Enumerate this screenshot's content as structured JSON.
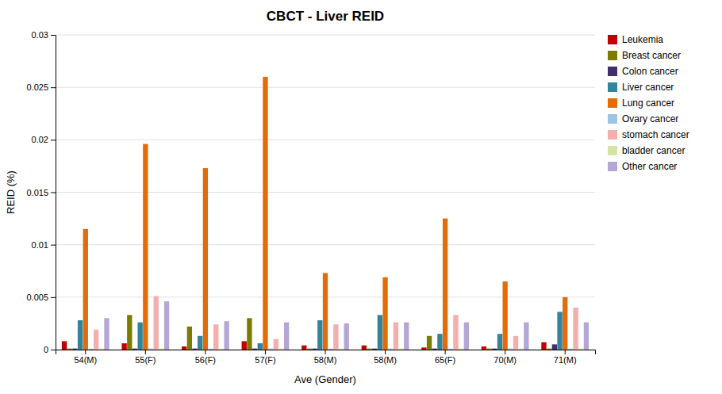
{
  "chart_data": {
    "type": "bar",
    "title": "CBCT - Liver REID",
    "xlabel": "Ave (Gender)",
    "ylabel": "REID (%)",
    "categories": [
      "54(M)",
      "55(F)",
      "56(F)",
      "57(F)",
      "58(M)",
      "58(M)",
      "65(F)",
      "70(M)",
      "71(M)"
    ],
    "series": [
      {
        "name": "Leukemia",
        "color": "#C00000",
        "values": [
          0.0008,
          0.0006,
          0.0003,
          0.0008,
          0.0004,
          0.0004,
          0.0002,
          0.0003,
          0.0007
        ]
      },
      {
        "name": "Breast cancer",
        "color": "#7B7B00",
        "values": [
          0.0001,
          0.0033,
          0.0022,
          0.003,
          0.0001,
          0.0001,
          0.0013,
          0.0001,
          0.0001
        ]
      },
      {
        "name": "Colon cancer",
        "color": "#403070",
        "values": [
          0.0001,
          0.0001,
          0.0001,
          0.0001,
          0.0001,
          0.0001,
          0.0001,
          0.0001,
          0.0005
        ]
      },
      {
        "name": "Liver cancer",
        "color": "#31849B",
        "values": [
          0.0028,
          0.0026,
          0.0013,
          0.0006,
          0.0028,
          0.0033,
          0.0015,
          0.0015,
          0.0036
        ]
      },
      {
        "name": "Lung cancer",
        "color": "#E36C09",
        "values": [
          0.0115,
          0.0196,
          0.0173,
          0.026,
          0.0073,
          0.0069,
          0.0125,
          0.0065,
          0.005
        ]
      },
      {
        "name": "Ovary cancer",
        "color": "#9DC3E6",
        "values": [
          0.0001,
          0.0001,
          0.0001,
          0.0001,
          0.0001,
          0.0001,
          0.0001,
          0.0001,
          0.0001
        ]
      },
      {
        "name": "stomach cancer",
        "color": "#F4AEAC",
        "values": [
          0.0019,
          0.0051,
          0.0024,
          0.001,
          0.0024,
          0.0026,
          0.0033,
          0.0013,
          0.004
        ]
      },
      {
        "name": "bladder cancer",
        "color": "#D6E4A1",
        "values": [
          0.0001,
          0.0001,
          0.0001,
          0.0001,
          0.0001,
          0.0001,
          0.0001,
          0.0001,
          0.0001
        ]
      },
      {
        "name": "Other cancer",
        "color": "#B4A7D6",
        "values": [
          0.003,
          0.0046,
          0.0027,
          0.0026,
          0.0025,
          0.0026,
          0.0026,
          0.0026,
          0.0026
        ]
      }
    ],
    "ylim": [
      0,
      0.03
    ],
    "yticks": [
      0,
      0.005,
      0.01,
      0.015,
      0.02,
      0.025,
      0.03
    ],
    "grid": true,
    "legend": "right"
  }
}
